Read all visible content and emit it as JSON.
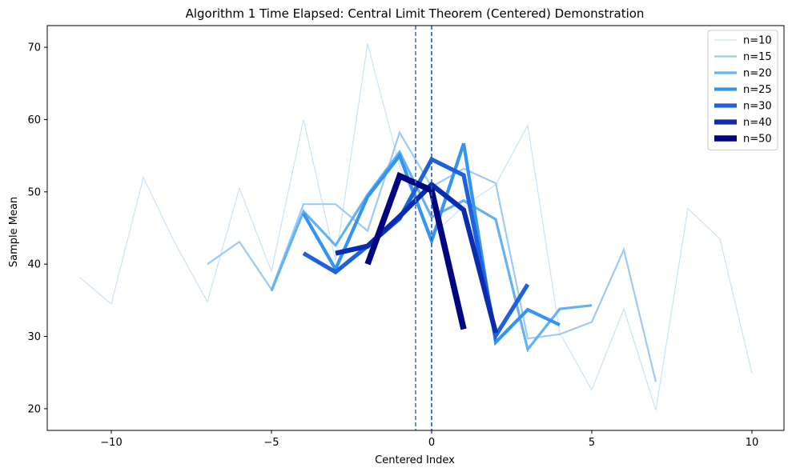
{
  "chart_data": {
    "type": "line",
    "title": "Algorithm 1 Time Elapsed: Central Limit Theorem (Centered) Demonstration",
    "xlabel": "Centered Index",
    "ylabel": "Sample Mean",
    "xlim": [
      -12,
      11
    ],
    "ylim": [
      17,
      73
    ],
    "xticks": [
      -10,
      -5,
      0,
      5,
      10
    ],
    "xtick_labels": [
      "−10",
      "−5",
      "0",
      "5",
      "10"
    ],
    "yticks": [
      20,
      30,
      40,
      50,
      60,
      70
    ],
    "ytick_labels": [
      "20",
      "30",
      "40",
      "50",
      "60",
      "70"
    ],
    "grid": false,
    "legend_position": "top-right",
    "vlines": [
      {
        "x": -0.5,
        "color": "#4a70c8",
        "style": "dashed"
      },
      {
        "x": 0,
        "color": "#1f5fc0",
        "style": "dashed"
      }
    ],
    "series": [
      {
        "name": "n=10",
        "color": "#c6e2fb",
        "width": 1.2,
        "x": [
          -11,
          -10,
          -9,
          -8,
          -7,
          -6,
          -5,
          -4,
          -3,
          -2,
          -1,
          0,
          1,
          2,
          3,
          4,
          5,
          6,
          7,
          8,
          9,
          10
        ],
        "y": [
          38.2,
          34.5,
          52.0,
          42.8,
          34.8,
          50.5,
          39.0,
          60.0,
          40.5,
          70.5,
          53.5,
          44.0,
          48.0,
          51.0,
          59.2,
          30.5,
          22.6,
          33.8,
          19.8,
          47.7,
          43.5,
          24.9
        ]
      },
      {
        "name": "n=15",
        "color": "#9ccbf5",
        "width": 2.2,
        "x": [
          -7,
          -6,
          -5,
          -4,
          -3,
          -2,
          -1,
          0,
          1,
          2,
          3,
          4,
          5,
          6,
          7
        ],
        "y": [
          40.0,
          43.1,
          36.5,
          48.3,
          48.3,
          44.6,
          58.2,
          50.7,
          53.2,
          51.2,
          29.7,
          30.3,
          32.0,
          42.0,
          23.7
        ]
      },
      {
        "name": "n=20",
        "color": "#64b2f4",
        "width": 3.2,
        "x": [
          -5,
          -4,
          -3,
          -2,
          -1,
          0,
          1,
          2,
          3,
          4,
          5
        ],
        "y": [
          36.3,
          47.3,
          42.6,
          49.6,
          55.5,
          46.5,
          48.8,
          46.2,
          28.2,
          33.8,
          34.3
        ]
      },
      {
        "name": "n=25",
        "color": "#3594f0",
        "width": 4.2,
        "x": [
          -4,
          -3,
          -2,
          -1,
          0,
          1,
          2,
          3,
          4
        ],
        "y": [
          47.0,
          39.3,
          49.3,
          55.0,
          43.2,
          56.7,
          29.2,
          33.7,
          31.6
        ]
      },
      {
        "name": "n=30",
        "color": "#1f60db",
        "width": 5.2,
        "x": [
          -4,
          -3,
          -2,
          -1,
          0,
          1,
          2,
          3
        ],
        "y": [
          41.5,
          38.9,
          42.5,
          46.3,
          54.5,
          52.3,
          30.1,
          37.2
        ]
      },
      {
        "name": "n=40",
        "color": "#0b2cb0",
        "width": 6.2,
        "x": [
          -3,
          -2,
          -1,
          0,
          1,
          2
        ],
        "y": [
          41.5,
          42.5,
          46.6,
          51.0,
          47.5,
          30.5
        ]
      },
      {
        "name": "n=50",
        "color": "#000580",
        "width": 7.5,
        "x": [
          -2,
          -1,
          0,
          1
        ],
        "y": [
          40.0,
          52.2,
          50.2,
          31.0
        ]
      }
    ]
  }
}
